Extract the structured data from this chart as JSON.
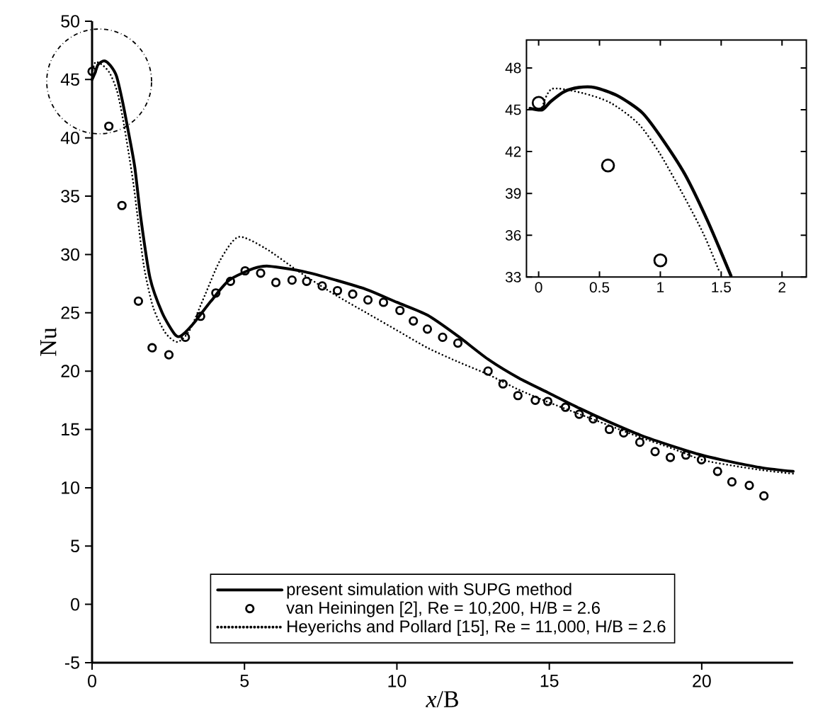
{
  "chart_data": [
    {
      "type": "line",
      "xlabel": "*x*/B",
      "ylabel": "Nu",
      "xlim": [
        0,
        23
      ],
      "ylim": [
        -5,
        50
      ],
      "xticks": [
        0,
        5,
        10,
        15,
        20
      ],
      "yticks": [
        -5,
        0,
        5,
        10,
        15,
        20,
        25,
        30,
        35,
        40,
        45,
        50
      ],
      "legend": "bottom",
      "series": [
        {
          "name": "present simulation with SUPG method",
          "color": "#000000",
          "line_style": "solid",
          "marker": "none",
          "x": [
            0,
            0.1,
            0.2,
            0.4,
            0.6,
            0.8,
            1.0,
            1.2,
            1.4,
            1.6,
            1.9,
            2.3,
            2.7,
            2.9,
            3.3,
            3.9,
            4.5,
            5.3,
            5.8,
            7,
            8,
            9,
            10,
            11,
            12,
            13,
            14,
            15,
            16,
            17,
            18,
            19,
            20,
            21,
            22,
            23
          ],
          "values": [
            45.0,
            45.6,
            46.3,
            46.6,
            46.2,
            45.3,
            43.1,
            40.4,
            37.5,
            33.1,
            28,
            25,
            23.2,
            23,
            24,
            26,
            27.8,
            28.8,
            29,
            28.5,
            27.8,
            27,
            25.9,
            24.8,
            23.0,
            21.0,
            19.4,
            18.1,
            16.8,
            15.6,
            14.5,
            13.6,
            12.8,
            12.2,
            11.7,
            11.4
          ]
        },
        {
          "name": "van Heiningen [2], Re = 10,200, H/B = 2.6",
          "type": "scatter",
          "color": "#000000",
          "marker": "circle",
          "x": [
            0,
            0.55,
            0.98,
            1.52,
            1.97,
            2.52,
            3.06,
            3.56,
            4.06,
            4.54,
            5.02,
            5.53,
            6.03,
            6.56,
            7.04,
            7.55,
            8.05,
            8.55,
            9.05,
            9.56,
            10.1,
            10.54,
            11.0,
            11.5,
            12.0,
            12.99,
            13.48,
            13.97,
            14.54,
            14.95,
            15.53,
            15.98,
            16.44,
            16.97,
            17.44,
            17.97,
            18.47,
            18.97,
            19.48,
            19.99,
            20.52,
            20.99,
            21.56,
            22.04
          ],
          "values": [
            45.7,
            41.0,
            34.2,
            26.0,
            22.0,
            21.4,
            22.9,
            24.7,
            26.7,
            27.7,
            28.6,
            28.4,
            27.6,
            27.8,
            27.7,
            27.3,
            26.9,
            26.6,
            26.1,
            25.9,
            25.2,
            24.3,
            23.6,
            22.9,
            22.4,
            20.0,
            18.9,
            17.9,
            17.5,
            17.4,
            16.9,
            16.3,
            15.9,
            15.0,
            14.7,
            13.9,
            13.1,
            12.6,
            12.8,
            12.4,
            11.4,
            10.5,
            10.2,
            9.3
          ]
        },
        {
          "name": "Heyerichs and Pollard [15], Re = 11,000, H/B = 2.6",
          "color": "#000000",
          "line_style": "dotted",
          "marker": "none",
          "x": [
            0,
            0.11,
            0.36,
            0.59,
            0.82,
            1.0,
            1.2,
            1.36,
            1.48,
            1.7,
            2.0,
            2.4,
            2.8,
            3.2,
            3.7,
            4.2,
            4.8,
            5.7,
            6.8,
            8,
            9,
            10,
            11,
            12,
            13,
            14,
            15,
            16,
            17,
            18,
            19,
            20,
            21,
            22,
            23
          ],
          "values": [
            45.5,
            46.5,
            46.2,
            45.5,
            44.0,
            41.8,
            38.7,
            36.0,
            33.5,
            29,
            25.5,
            23.3,
            22.5,
            23.5,
            26.5,
            29.5,
            31.5,
            30.5,
            28.5,
            26.5,
            25,
            23.5,
            22,
            20.8,
            19.7,
            18.4,
            17.3,
            16.3,
            15.3,
            14.3,
            13.4,
            12.4,
            11.9,
            11.5,
            11.2
          ]
        }
      ]
    },
    {
      "type": "line",
      "xlim": [
        -0.1,
        2.2
      ],
      "ylim": [
        33,
        50
      ],
      "xticks": [
        0,
        0.5,
        1,
        1.5,
        2
      ],
      "yticks": [
        33,
        36,
        39,
        42,
        45,
        48
      ],
      "series": [
        {
          "color": "#000000",
          "line_style": "solid",
          "marker": "none",
          "x": [
            -0.07,
            0.03,
            0.1,
            0.21,
            0.33,
            0.46,
            0.65,
            0.85,
            1.0,
            1.2,
            1.39,
            1.58
          ],
          "values": [
            45.1,
            45.0,
            45.6,
            46.3,
            46.6,
            46.6,
            46.0,
            44.8,
            43.1,
            40.4,
            37.0,
            33.1
          ]
        },
        {
          "type": "scatter",
          "color": "#000000",
          "marker": "circle",
          "x": [
            0,
            0.57,
            1.0
          ],
          "values": [
            45.5,
            41.0,
            34.2
          ]
        },
        {
          "color": "#000000",
          "line_style": "dotted",
          "marker": "none",
          "x": [
            0.03,
            0.11,
            0.36,
            0.59,
            0.82,
            1.0,
            1.2,
            1.36,
            1.48
          ],
          "values": [
            45.2,
            46.5,
            46.2,
            45.5,
            44.0,
            41.8,
            38.7,
            36.0,
            33.5
          ]
        }
      ]
    }
  ]
}
